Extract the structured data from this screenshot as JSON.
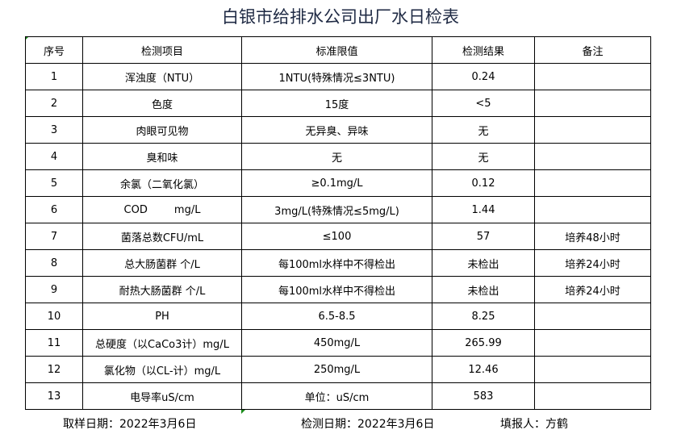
{
  "title": "白银市给排水公司出厂水日检表",
  "headers": [
    "序号",
    "检测项目",
    "标准限值",
    "检测结果",
    "备注"
  ],
  "rows": [
    [
      "1",
      "浑浊度（NTU）",
      "1NTU(特殊情况≤3NTU)",
      "0.24",
      ""
    ],
    [
      "2",
      "色度",
      "15度",
      "<5",
      ""
    ],
    [
      "3",
      "肉眼可见物",
      "无异臭、异味",
      "无",
      ""
    ],
    [
      "4",
      "臭和味",
      "无",
      "无",
      ""
    ],
    [
      "5",
      "余氯（二氧化氯）",
      "≥0.1mg/L",
      "0.12",
      ""
    ],
    [
      "6",
      "COD        mg/L",
      "3mg/L(特殊情况≤5mg/L)",
      "1.44",
      ""
    ],
    [
      "7",
      "菌落总数CFU/mL",
      "≤100",
      "57",
      "培养48小时"
    ],
    [
      "8",
      "总大肠菌群 个/L",
      "每100ml水样中不得检出",
      "未检出",
      "培养24小时"
    ],
    [
      "9",
      "耐热大肠菌群 个/L",
      "每100ml水样中不得检出",
      "未检出",
      "培养24小时"
    ],
    [
      "10",
      "PH",
      "6.5-8.5",
      "8.25",
      ""
    ],
    [
      "11",
      "总硬度（以CaCo3计）mg/L",
      "450mg/L",
      "265.99",
      ""
    ],
    [
      "12",
      "氯化物（以CL-计）mg/L",
      "250mg/L",
      "12.46",
      ""
    ],
    [
      "13",
      "电导率uS/cm",
      "单位：uS/cm",
      "583",
      ""
    ]
  ],
  "footer": {
    "sample_date": "取样日期：2022年3月6日",
    "test_date": "检测日期：2022年3月6日",
    "reporter": "填报人：方鹤"
  }
}
